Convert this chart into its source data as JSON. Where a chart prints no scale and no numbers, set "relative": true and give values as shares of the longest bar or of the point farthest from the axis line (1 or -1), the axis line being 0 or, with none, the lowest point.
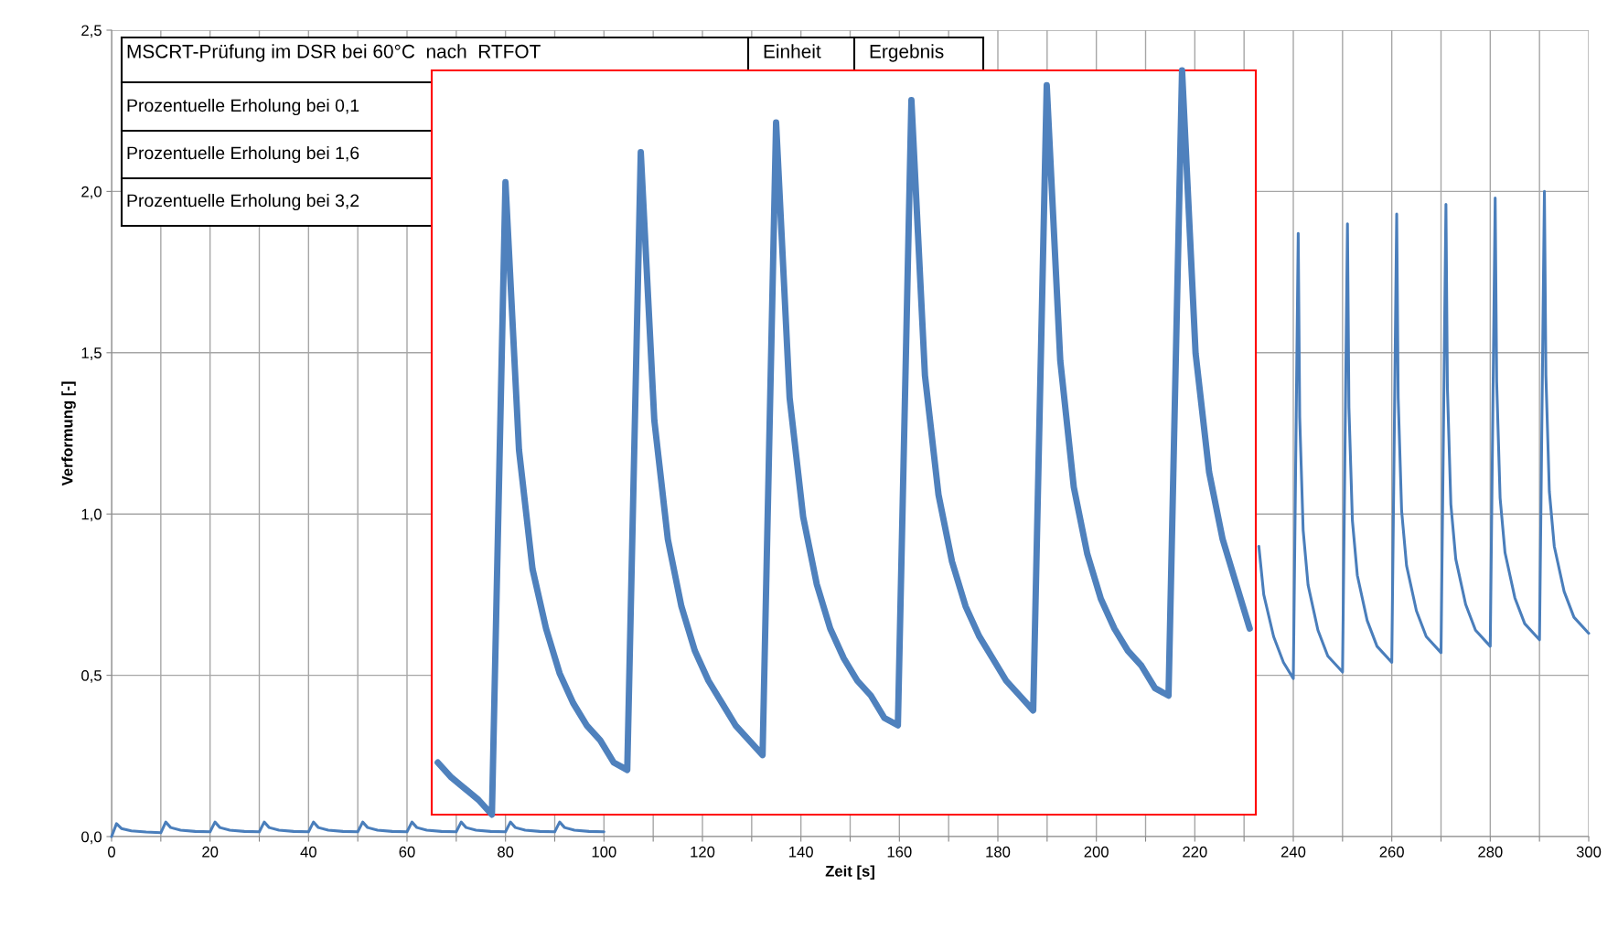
{
  "chart_data": [
    {
      "type": "line",
      "xlabel": "Zeit [s]",
      "ylabel": "Verformung [-]",
      "x": [
        0,
        1,
        2,
        4,
        7,
        10,
        11,
        12,
        14,
        17,
        20,
        21,
        22,
        24,
        27,
        30,
        31,
        32,
        34,
        37,
        40,
        41,
        42,
        44,
        47,
        50,
        51,
        52,
        54,
        57,
        60,
        61,
        62,
        64,
        67,
        70,
        71,
        72,
        74,
        77,
        80,
        81,
        82,
        84,
        87,
        90,
        91,
        92,
        94,
        97,
        100,
        101,
        233,
        234,
        236,
        238,
        240,
        241,
        241.3,
        242,
        243,
        245,
        247,
        250,
        251,
        251.3,
        252,
        253,
        255,
        257,
        260,
        261,
        261.3,
        262,
        263,
        265,
        267,
        270,
        271,
        271.3,
        272,
        273,
        275,
        277,
        280,
        281,
        281.3,
        282,
        283,
        285,
        287,
        290,
        291,
        291.3,
        292,
        293,
        295,
        297,
        300
      ],
      "series": [
        {
          "color": "#4a7ebb",
          "values": [
            0.0,
            0.04,
            0.025,
            0.018,
            0.014,
            0.012,
            0.045,
            0.028,
            0.02,
            0.016,
            0.015,
            0.045,
            0.028,
            0.02,
            0.016,
            0.015,
            0.045,
            0.028,
            0.02,
            0.016,
            0.015,
            0.045,
            0.028,
            0.02,
            0.016,
            0.015,
            0.045,
            0.028,
            0.02,
            0.016,
            0.015,
            0.045,
            0.028,
            0.02,
            0.016,
            0.015,
            0.045,
            0.028,
            0.02,
            0.016,
            0.015,
            0.045,
            0.028,
            0.02,
            0.016,
            0.015,
            0.045,
            0.028,
            0.02,
            0.016,
            0.015,
            null,
            0.9,
            0.75,
            0.62,
            0.54,
            0.49,
            1.87,
            1.3,
            0.95,
            0.78,
            0.64,
            0.56,
            0.51,
            1.9,
            1.33,
            0.98,
            0.81,
            0.67,
            0.59,
            0.54,
            1.93,
            1.36,
            1.01,
            0.84,
            0.7,
            0.62,
            0.57,
            1.96,
            1.39,
            1.03,
            0.86,
            0.72,
            0.64,
            0.59,
            1.98,
            1.41,
            1.05,
            0.88,
            0.74,
            0.66,
            0.61,
            2.0,
            1.43,
            1.07,
            0.9,
            0.76,
            0.68,
            0.63
          ]
        }
      ],
      "xlim": [
        0,
        300
      ],
      "xticks": [
        0,
        {
          "value": 10,
          "label": null
        },
        20,
        {
          "value": 30,
          "label": null
        },
        40,
        {
          "value": 50,
          "label": null
        },
        60,
        {
          "value": 70,
          "label": null
        },
        80,
        {
          "value": 90,
          "label": null
        },
        100,
        {
          "value": 110,
          "label": null
        },
        120,
        {
          "value": 130,
          "label": null
        },
        140,
        {
          "value": 150,
          "label": null
        },
        160,
        {
          "value": 170,
          "label": null
        },
        180,
        {
          "value": 190,
          "label": null
        },
        200,
        {
          "value": 210,
          "label": null
        },
        220,
        {
          "value": 230,
          "label": null
        },
        240,
        {
          "value": 250,
          "label": null
        },
        260,
        {
          "value": 270,
          "label": null
        },
        280,
        {
          "value": 290,
          "label": null
        },
        300
      ],
      "ylim": [
        0,
        2.5
      ],
      "yticks": [
        {
          "value": 0,
          "label": "0,0"
        },
        {
          "value": 0.5,
          "label": "0,5"
        },
        {
          "value": 1,
          "label": "1,0"
        },
        {
          "value": 1.5,
          "label": "1,5"
        },
        {
          "value": 2,
          "label": "2,0"
        },
        {
          "value": 2.5,
          "label": "2,5"
        }
      ],
      "grid": true,
      "annotations": [
        "MSCRT-Prüfung im DSR bei 60°C  nach  RTFOT",
        "Einheit",
        "Ergebnis",
        "Prozentuelle Erholung bei 0,1",
        "Prozentuelle Erholung bei 1,6",
        "Prozentuelle Erholung bei 3,2"
      ]
    },
    {
      "type": "line",
      "relative": true,
      "categories": [
        null,
        null,
        null,
        null,
        null,
        null,
        null,
        null,
        null,
        null,
        null,
        null,
        null,
        null,
        null,
        null,
        null,
        null,
        null,
        null,
        null,
        null,
        null,
        null,
        null,
        null,
        null,
        null,
        null,
        null,
        null,
        null,
        null,
        null,
        null,
        null,
        null,
        null,
        null,
        null,
        null,
        null,
        null,
        null,
        null,
        null,
        null,
        null,
        null,
        null,
        null,
        null,
        null,
        null,
        null,
        null,
        null,
        null,
        null,
        null,
        null
      ],
      "series": [
        {
          "color": "#4f81bd",
          "values": [
            0.07,
            0.05,
            0.035,
            0.02,
            0.0,
            0.85,
            0.49,
            0.33,
            0.25,
            0.19,
            0.15,
            0.12,
            0.1,
            0.07,
            0.06,
            0.89,
            0.53,
            0.37,
            0.28,
            0.22,
            0.18,
            0.15,
            0.12,
            0.1,
            0.08,
            0.93,
            0.56,
            0.4,
            0.31,
            0.25,
            0.21,
            0.18,
            0.16,
            0.13,
            0.12,
            0.96,
            0.59,
            0.43,
            0.34,
            0.28,
            0.24,
            0.21,
            0.18,
            0.16,
            0.14,
            0.98,
            0.61,
            0.44,
            0.35,
            0.29,
            0.25,
            0.22,
            0.2,
            0.17,
            0.16,
            1.0,
            0.62,
            0.46,
            0.37,
            0.31,
            0.25
          ]
        }
      ]
    }
  ]
}
